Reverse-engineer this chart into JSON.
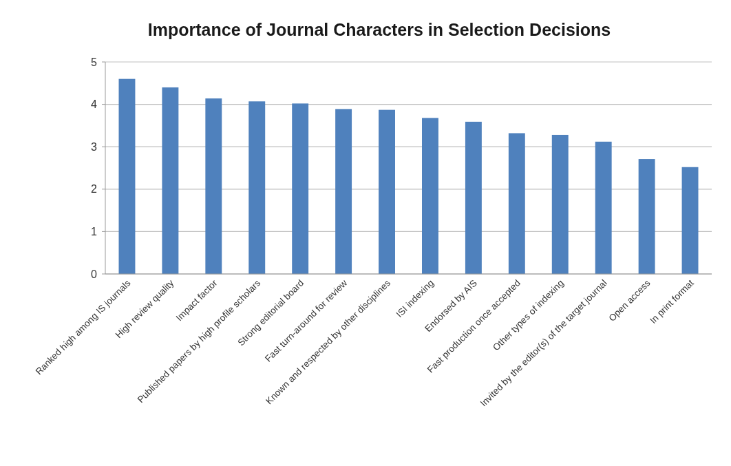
{
  "chart_data": {
    "type": "bar",
    "title": "Importance of Journal Characters in Selection Decisions",
    "categories": [
      "Ranked high among IS journals",
      "High review quality",
      "Impact factor",
      "Published papers by high profile scholars",
      "Strong editorial board",
      "Fast turn-around for review",
      "Known and respected by other disciplines",
      "ISI indexing",
      "Endorsed by AIS",
      "Fast production once accepted",
      "Other types of indexing",
      "Invited by the editor(s) of the target journal",
      "Open access",
      "In print format"
    ],
    "values": [
      4.6,
      4.4,
      4.14,
      4.07,
      4.02,
      3.89,
      3.87,
      3.68,
      3.59,
      3.32,
      3.28,
      3.12,
      2.71,
      2.52
    ],
    "color": "#4f81bd",
    "ylim": [
      0,
      5
    ],
    "yticks": [
      0,
      1,
      2,
      3,
      4,
      5
    ],
    "grid": "y"
  }
}
